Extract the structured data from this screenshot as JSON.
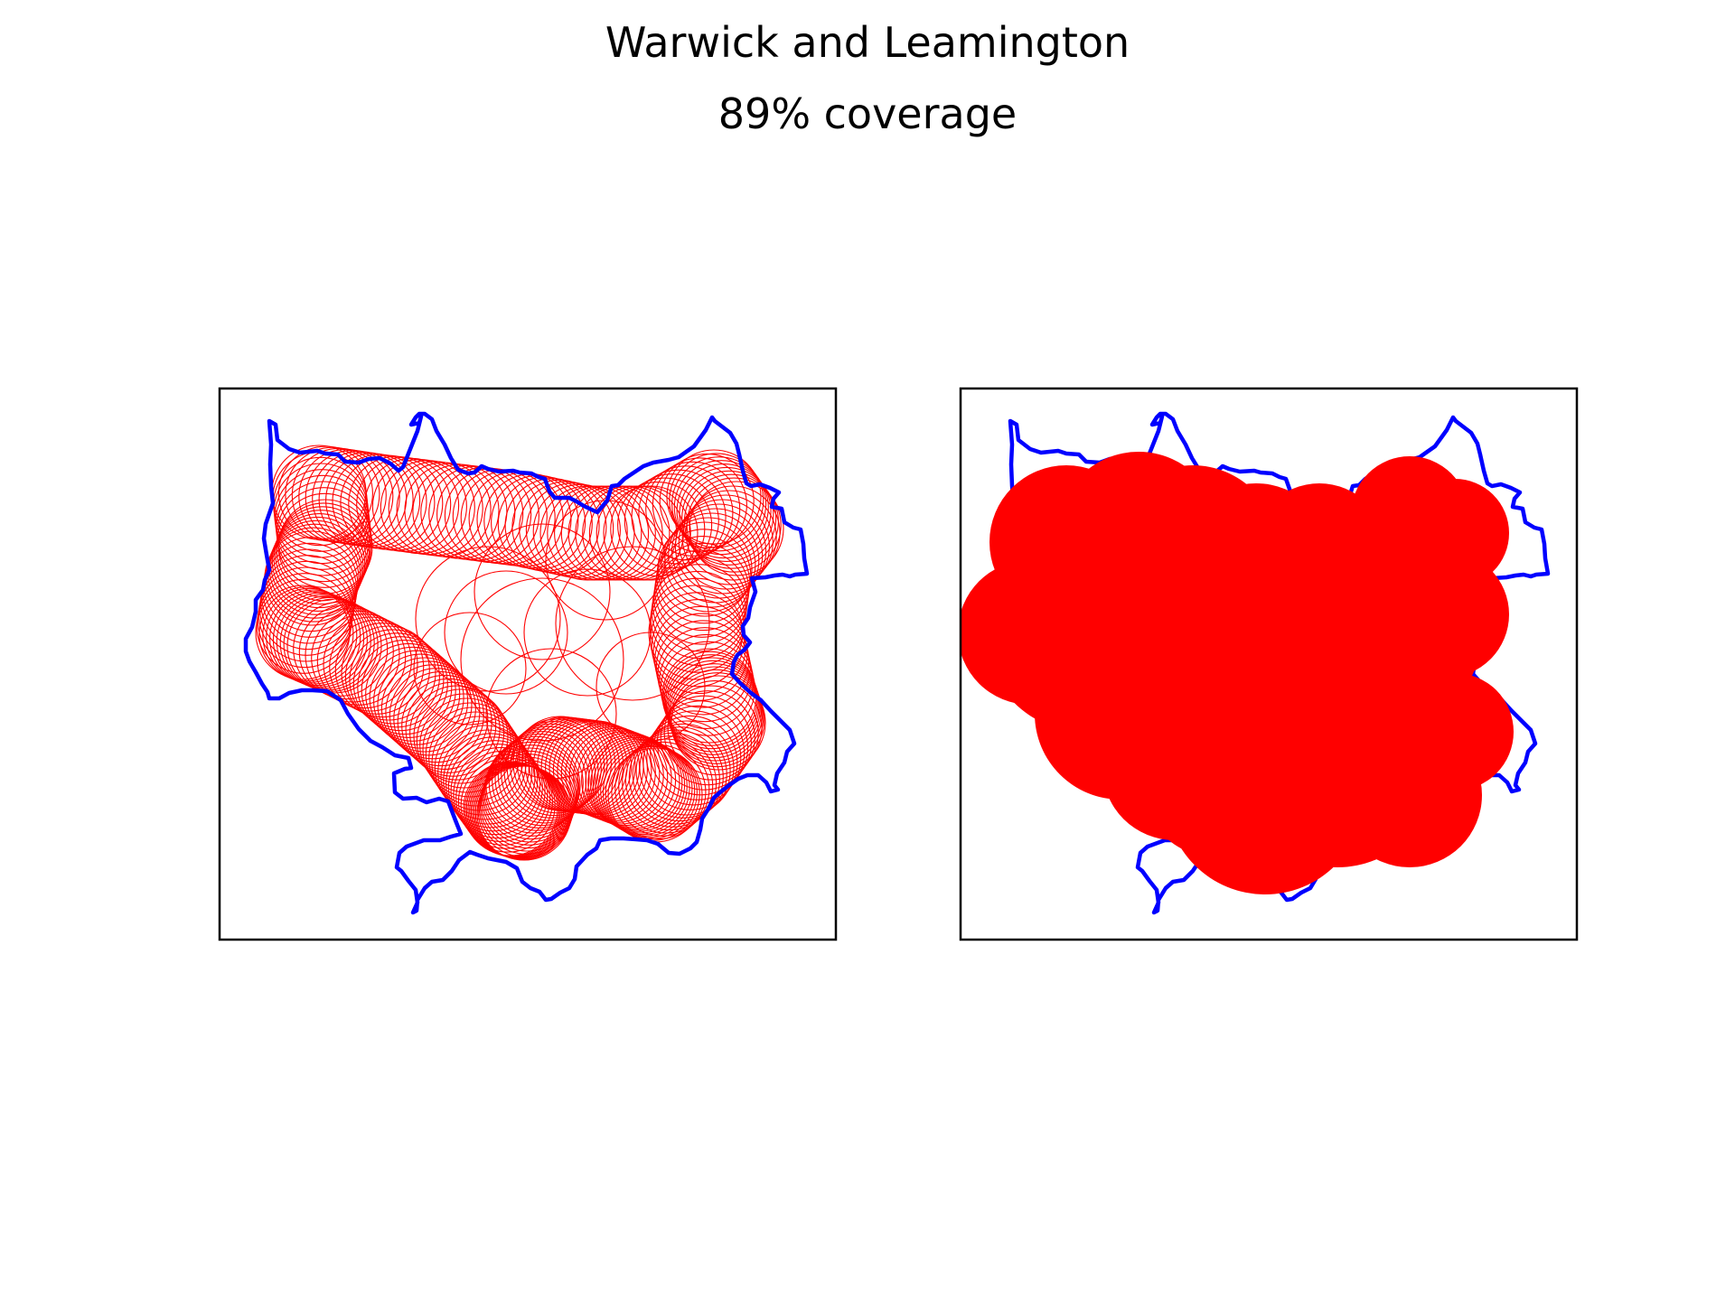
{
  "title": "Warwick and Leamington",
  "subtitle": "89% coverage",
  "colors": {
    "boundary": "#0000ff",
    "coverage": "#ff0000",
    "frame": "#000000",
    "background": "#ffffff"
  },
  "panels": [
    {
      "name": "circle-outlines-panel",
      "style": "outline"
    },
    {
      "name": "filled-coverage-panel",
      "style": "filled"
    }
  ]
}
